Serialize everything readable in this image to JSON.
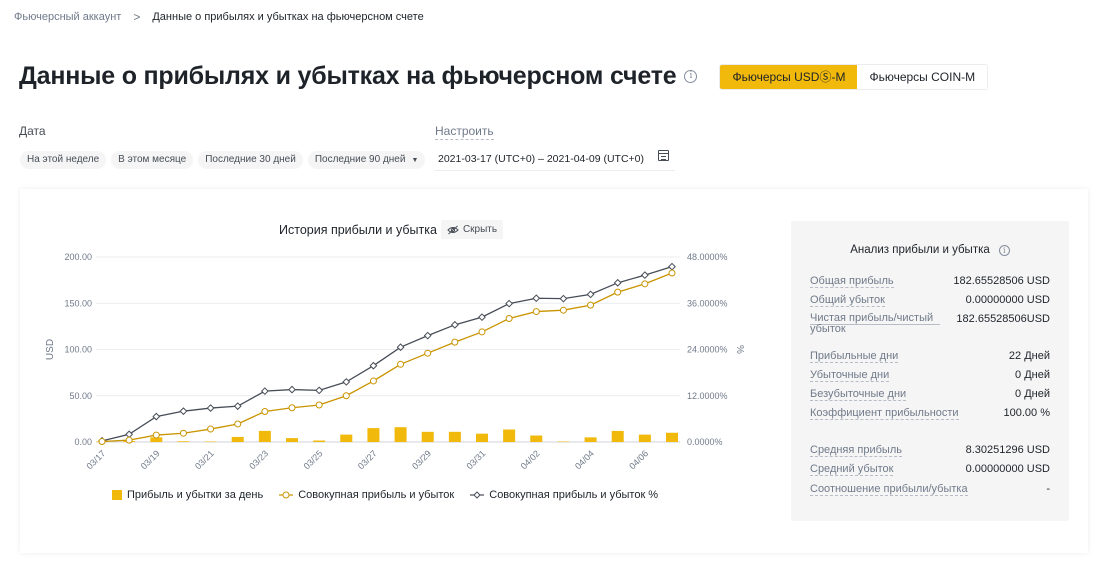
{
  "breadcrumb": {
    "parent": "Фьючерсный аккаунт",
    "separator": ">",
    "current": "Данные о прибылях и убытках на фьючерсном счете"
  },
  "page": {
    "title": "Данные о прибылях и убытках на фьючерсном счете",
    "info_icon": "i",
    "tabs": [
      {
        "label": "Фьючерсы USDⓈ-M",
        "active": true
      },
      {
        "label": "Фьючерсы COIN-M",
        "active": false
      }
    ]
  },
  "filters": {
    "date_label": "Дата",
    "configure_label": "Настроить",
    "presets": [
      "На этой неделе",
      "В этом месяце",
      "Последние 30 дней",
      "Последние 90 дней"
    ],
    "range": "2021-03-17 (UTC+0) – 2021-04-09 (UTC+0)"
  },
  "chart_header": {
    "title": "История прибыли и убытка",
    "hide_label": "Скрыть"
  },
  "chart_data": {
    "type": "bar",
    "x": [
      "03/17",
      "03/18",
      "03/19",
      "03/20",
      "03/21",
      "03/22",
      "03/23",
      "03/24",
      "03/25",
      "03/26",
      "03/27",
      "03/28",
      "03/29",
      "03/30",
      "03/31",
      "04/01",
      "04/02",
      "04/03",
      "04/04",
      "04/05",
      "04/06",
      "04/07"
    ],
    "x_tick_labels": [
      "03/17",
      "03/19",
      "03/21",
      "03/23",
      "03/25",
      "03/27",
      "03/29",
      "03/31",
      "04/02",
      "04/04",
      "04/06"
    ],
    "ylabel": "USD",
    "y2label": "%",
    "ylim": [
      0,
      200
    ],
    "y2lim": [
      0,
      48
    ],
    "y_ticks": [
      "0.00",
      "50.00",
      "100.00",
      "150.00",
      "200.00"
    ],
    "y2_ticks": [
      "0.0000%",
      "12.0000%",
      "24.0000%",
      "36.0000%",
      "48.0000%"
    ],
    "series": [
      {
        "name": "Прибыль и убытки за день",
        "kind": "bar",
        "axis": "left",
        "color": "#f0b90b",
        "values": [
          0.5,
          1,
          5,
          0.8,
          0.5,
          5.5,
          12,
          4.2,
          1.6,
          8,
          15,
          16,
          11,
          11,
          9,
          13.5,
          7,
          0.5,
          5,
          12,
          8,
          10
        ]
      },
      {
        "name": "Совокупная прибыль и убыток",
        "kind": "line",
        "axis": "left",
        "color": "#c99400",
        "values": [
          0.5,
          2,
          7.5,
          9.5,
          14,
          19.5,
          33,
          37,
          40,
          50,
          66,
          84,
          96,
          108,
          119,
          133.5,
          141,
          142.5,
          148,
          162,
          171,
          182.66
        ]
      },
      {
        "name": "Совокупная прибыль и убыток %",
        "kind": "line",
        "axis": "right",
        "color": "#474d57",
        "values": [
          0.3,
          2.0,
          6.6,
          8.0,
          8.8,
          9.3,
          13.2,
          13.6,
          13.4,
          15.6,
          19.8,
          24.6,
          27.6,
          30.4,
          32.4,
          35.9,
          37.3,
          37.2,
          38.3,
          41.3,
          43.3,
          45.5
        ]
      }
    ],
    "grid": true,
    "legend": "bottom"
  },
  "analysis": {
    "title": "Анализ прибыли и убытка",
    "info_icon": "i",
    "rows": [
      {
        "label": "Общая прибыль",
        "value": "182.65528506 USD"
      },
      {
        "label": "Общий убыток",
        "value": "0.00000000 USD"
      },
      {
        "label": "Чистая прибыль/чистый убыток",
        "value": "182.65528506USD"
      },
      {
        "label": "Прибыльные дни",
        "value": "22 Дней"
      },
      {
        "label": "Убыточные дни",
        "value": "0 Дней"
      },
      {
        "label": "Безубыточные дни",
        "value": "0 Дней"
      },
      {
        "label": "Коэффициент прибыльности",
        "value": "100.00 %"
      },
      {
        "label": "Средняя прибыль",
        "value": "8.30251296 USD"
      },
      {
        "label": "Средний убыток",
        "value": "0.00000000 USD"
      },
      {
        "label": "Соотношение прибыли/убытка",
        "value": "-"
      }
    ]
  },
  "colors": {
    "accent": "#f0b90b",
    "cumulative_line": "#c99400",
    "percent_line": "#474d57"
  }
}
